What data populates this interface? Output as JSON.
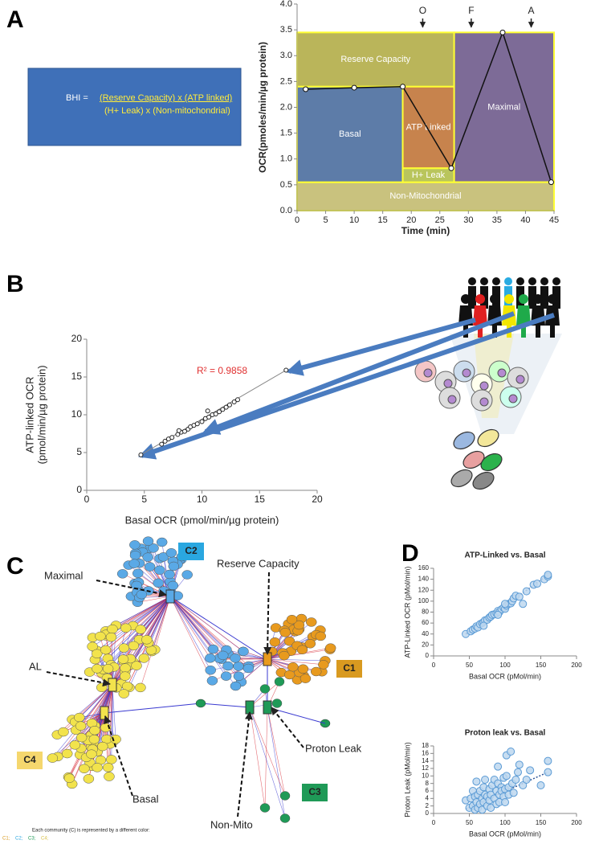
{
  "panel_labels": [
    "A",
    "B",
    "C",
    "D"
  ],
  "bhi": {
    "lhs": "BHI = ",
    "numerator": "(Reserve Capacity) x (ATP linked)",
    "denominator": "(H+ Leak) x (Non-mitochondrial)"
  },
  "chart_data": [
    {
      "type": "line",
      "xlabel": "Time (min)",
      "ylabel": "OCR(pmoles/min/µg protein)",
      "xlim": [
        0,
        45
      ],
      "xticks": [
        0,
        5,
        10,
        15,
        20,
        25,
        30,
        35,
        40,
        45
      ],
      "ylim": [
        0,
        4
      ],
      "yticks": [
        {
          "value": 0,
          "label": "0.0"
        },
        0.5,
        {
          "value": 1,
          "label": "1.0"
        },
        1.5,
        {
          "value": 2,
          "label": "2.0"
        },
        2.5,
        {
          "value": 3,
          "label": "3.0"
        },
        3.5,
        {
          "value": 4,
          "label": "4.0"
        }
      ],
      "x": [
        1.5,
        10,
        18.5,
        27,
        36,
        44.5
      ],
      "values": [
        2.35,
        2.38,
        2.4,
        0.82,
        3.45,
        0.55
      ],
      "regions": [
        {
          "label": "Maximal",
          "color": "#7d6b97",
          "x": [
            27.5,
            45
          ],
          "y": [
            0.55,
            3.45
          ]
        },
        {
          "label": "Non-Mitochondrial",
          "color": "#c9c27e",
          "x": [
            0,
            45
          ],
          "y": [
            0,
            0.55
          ]
        },
        {
          "label": "Reserve Capacity",
          "color": "#bab55a",
          "x": [
            0,
            27.5
          ],
          "y": [
            2.4,
            3.45
          ]
        },
        {
          "label": "Basal",
          "color": "#5d7ca8",
          "x": [
            0,
            18.5
          ],
          "y": [
            0.55,
            2.4
          ]
        },
        {
          "label": "ATP Linked",
          "color": "#c7834d",
          "x": [
            18.5,
            27.5
          ],
          "y": [
            0.82,
            2.4
          ]
        },
        {
          "label": "H+ Leak",
          "color": "#b9c55c",
          "x": [
            18.5,
            27.5
          ],
          "y": [
            0.55,
            0.82
          ]
        }
      ],
      "injections": [
        {
          "label": "O",
          "x": 22
        },
        {
          "label": "F",
          "x": 30.5
        },
        {
          "label": "A",
          "x": 41
        }
      ]
    },
    {
      "type": "scatter",
      "xlabel": "Basal OCR (pmol/min/µg protein)",
      "ylabel": [
        "ATP-linked OCR",
        "(pmol/min/µg protein)"
      ],
      "xlim": [
        0,
        20
      ],
      "xticks": [
        0,
        5,
        10,
        15,
        20
      ],
      "ylim": [
        0,
        20
      ],
      "yticks": [
        0,
        5,
        10,
        15,
        20
      ],
      "x": [
        4.7,
        6.5,
        6.8,
        7.1,
        7.4,
        7.9,
        8.2,
        8.5,
        8.8,
        9.0,
        9.3,
        9.6,
        10.0,
        10.3,
        10.6,
        10.9,
        11.2,
        11.5,
        11.8,
        12.1,
        12.4,
        12.8,
        13.1,
        17.3,
        10.5,
        8.0
      ],
      "values": [
        4.7,
        6.1,
        6.5,
        6.8,
        7.0,
        7.4,
        7.7,
        7.8,
        8.1,
        8.4,
        8.6,
        8.8,
        9.1,
        9.5,
        9.7,
        10.0,
        10.1,
        10.4,
        10.7,
        11.0,
        11.3,
        11.7,
        12.0,
        15.9,
        10.5,
        7.9
      ],
      "trendline": {
        "x": [
          4.7,
          17.3
        ],
        "y": [
          4.7,
          15.9
        ]
      },
      "annotation": "R² = 0.9858"
    },
    {
      "type": "scatter",
      "title": "ATP-Linked vs. Basal",
      "xlabel": "Basal OCR (pMol/min)",
      "ylabel": [
        "ATP-Linked OCR (pMol/min)"
      ],
      "xlim": [
        0,
        200
      ],
      "xticks": [
        0,
        50,
        100,
        150,
        200
      ],
      "ylim": [
        0,
        160
      ],
      "yticks": [
        0,
        20,
        40,
        60,
        80,
        100,
        120,
        140,
        160
      ],
      "x": [
        45,
        52,
        55,
        58,
        60,
        62,
        65,
        68,
        70,
        72,
        75,
        78,
        80,
        82,
        85,
        88,
        90,
        92,
        95,
        98,
        100,
        102,
        105,
        108,
        110,
        112,
        115,
        120,
        125,
        130,
        140,
        145,
        155,
        160,
        160,
        70,
        90,
        100
      ],
      "values": [
        40,
        45,
        48,
        50,
        54,
        52,
        58,
        60,
        62,
        65,
        66,
        70,
        72,
        75,
        76,
        78,
        82,
        80,
        85,
        88,
        86,
        92,
        95,
        96,
        100,
        105,
        110,
        108,
        95,
        118,
        130,
        132,
        140,
        145,
        148,
        55,
        75,
        95
      ],
      "trendline": {
        "x": [
          45,
          160
        ],
        "y": [
          40,
          148
        ]
      }
    },
    {
      "type": "scatter",
      "title": "Proton leak vs. Basal",
      "xlabel": "Basal OCR (pMol/min)",
      "ylabel": [
        "Proton Leak (pMol/min)"
      ],
      "xlim": [
        0,
        200
      ],
      "xticks": [
        0,
        50,
        100,
        150,
        200
      ],
      "ylim": [
        0,
        18
      ],
      "yticks": [
        0,
        2,
        4,
        6,
        8,
        10,
        12,
        14,
        16,
        18
      ],
      "x": [
        45,
        50,
        52,
        55,
        55,
        58,
        58,
        60,
        60,
        62,
        62,
        65,
        65,
        68,
        68,
        70,
        70,
        72,
        72,
        75,
        75,
        78,
        78,
        80,
        80,
        82,
        85,
        85,
        88,
        88,
        90,
        90,
        92,
        92,
        95,
        95,
        98,
        98,
        100,
        100,
        102,
        102,
        105,
        105,
        108,
        110,
        112,
        115,
        118,
        120,
        125,
        130,
        135,
        150,
        160,
        160
      ],
      "values": [
        3.5,
        1.5,
        4,
        2,
        6,
        1,
        4.5,
        3,
        8.5,
        5,
        1.5,
        2.5,
        6,
        4,
        1,
        3,
        7,
        5,
        9,
        2,
        4.5,
        3.5,
        6.5,
        5,
        1.5,
        7.5,
        4,
        9,
        6,
        2.5,
        8,
        12.5,
        5,
        3,
        7,
        6,
        4.5,
        9.5,
        6.5,
        3,
        10,
        15.5,
        7,
        5,
        16.5,
        8,
        5.5,
        9,
        11,
        13,
        7.5,
        9,
        11.5,
        7.5,
        14,
        11
      ],
      "trendline": {
        "x": [
          45,
          160
        ],
        "y": [
          1.2,
          11
        ]
      }
    }
  ],
  "network": {
    "communities": [
      "C1",
      "C2",
      "C3",
      "C4"
    ],
    "annotations": [
      "Reserve Capacity",
      "Maximal",
      "AL",
      "Basal",
      "Proton Leak",
      "Non-Mito"
    ],
    "legend_note": "Each community (C) is represented by a different color:",
    "legend_items": [
      "C1;",
      "C2;",
      "C3;",
      "C4;"
    ]
  }
}
